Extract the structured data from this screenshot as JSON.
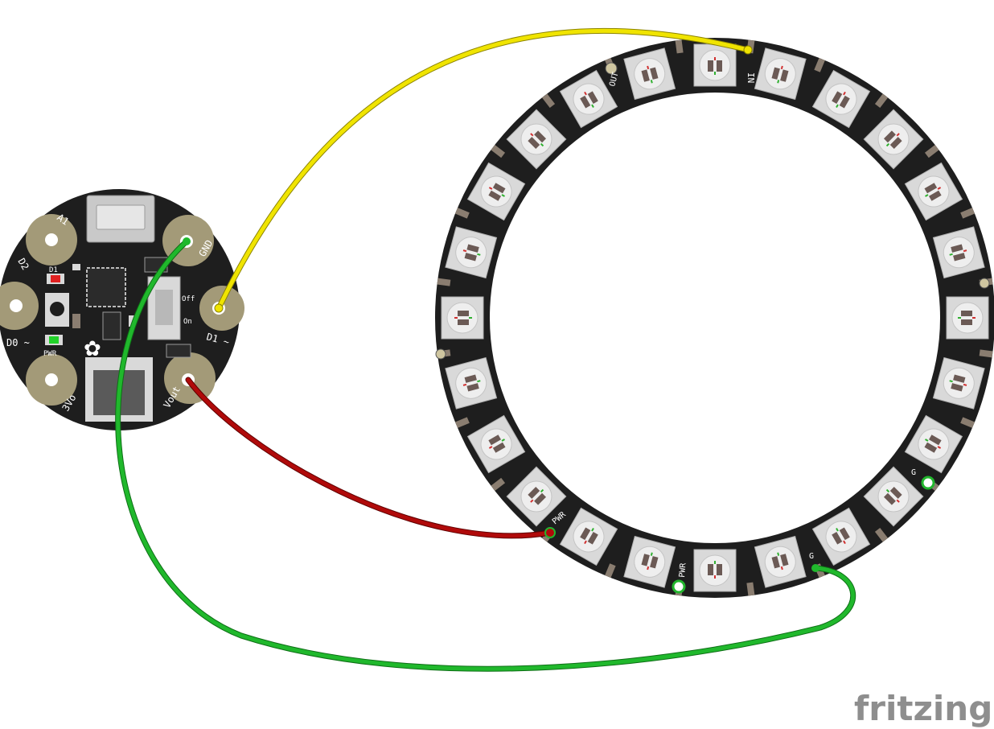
{
  "board": {
    "pads": [
      {
        "label": "A1"
      },
      {
        "label": "D2"
      },
      {
        "label": "D0 ~"
      },
      {
        "label": "3Vo"
      },
      {
        "label": "GND"
      },
      {
        "label": "D1 ~"
      },
      {
        "label": "Vout"
      }
    ],
    "chip_labels": {
      "led": "D1",
      "power_led": "PWR",
      "switch_off": "Off",
      "switch_on": "On"
    }
  },
  "ring": {
    "pixel_count": 24,
    "labels": {
      "in": "IN",
      "out": "OUT",
      "pwr_a": "PWR",
      "pwr_b": "PWR",
      "g_a": "G",
      "g_b": "G"
    }
  },
  "wires": [
    {
      "id": "data",
      "color": "#f0e400",
      "from": "D1 ~",
      "to": "IN"
    },
    {
      "id": "power",
      "color": "#b00a0a",
      "from": "Vout",
      "to": "PWR"
    },
    {
      "id": "ground",
      "color": "#20b82c",
      "from": "GND",
      "to": "G"
    }
  ],
  "colors": {
    "pcb": "#1e1e1e",
    "pad": "#a39a78",
    "led_body": "#d9d9d9"
  },
  "watermark": "fritzing"
}
